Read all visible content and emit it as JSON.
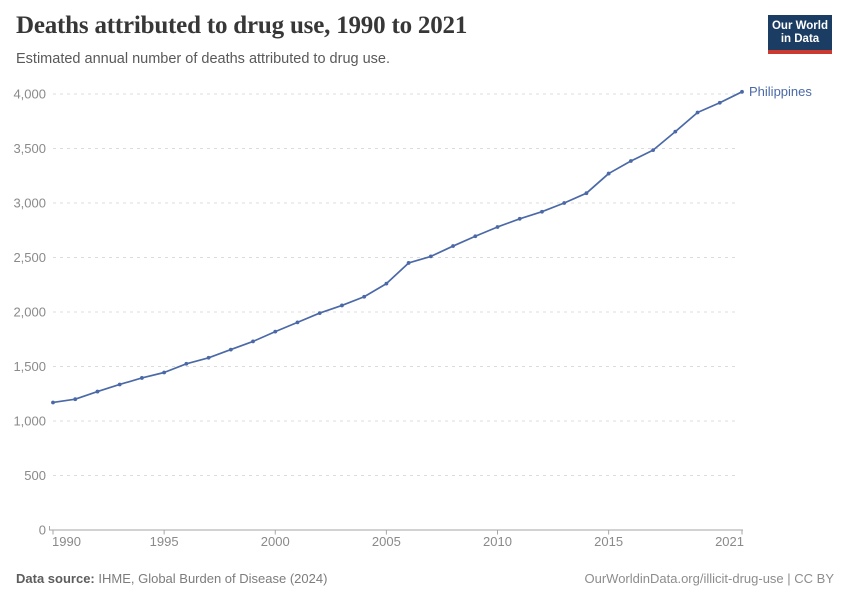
{
  "header": {
    "title": "Deaths attributed to drug use, 1990 to 2021",
    "subtitle": "Estimated annual number of deaths attributed to drug use.",
    "logo": {
      "line1": "Our World",
      "line2": "in Data"
    }
  },
  "chart_data": {
    "type": "line",
    "title": "Deaths attributed to drug use, 1990 to 2021",
    "xlabel": "",
    "ylabel": "",
    "xlim": [
      1990,
      2021
    ],
    "ylim": [
      0,
      4000
    ],
    "x_ticks": [
      1990,
      1995,
      2000,
      2005,
      2010,
      2015,
      2021
    ],
    "y_ticks": [
      0,
      500,
      1000,
      1500,
      2000,
      2500,
      3000,
      3500,
      4000
    ],
    "grid": "horizontal-dashed",
    "legend_position": "end-of-line-label",
    "series": [
      {
        "name": "Philippines",
        "x": [
          1990,
          1991,
          1992,
          1993,
          1994,
          1995,
          1996,
          1997,
          1998,
          1999,
          2000,
          2001,
          2002,
          2003,
          2004,
          2005,
          2006,
          2007,
          2008,
          2009,
          2010,
          2011,
          2012,
          2013,
          2014,
          2015,
          2016,
          2017,
          2018,
          2019,
          2020,
          2021
        ],
        "values": [
          1170,
          1200,
          1270,
          1335,
          1395,
          1445,
          1525,
          1580,
          1655,
          1730,
          1820,
          1905,
          1990,
          2060,
          2140,
          2260,
          2450,
          2510,
          2605,
          2695,
          2780,
          2855,
          2920,
          3000,
          3090,
          3270,
          3385,
          3485,
          3655,
          3830,
          3920,
          4020
        ]
      }
    ],
    "colors": {
      "line": "#4b69a7",
      "entity_label": "#4b69a7",
      "gridline": "#dcdcdc",
      "axis": "#a6a6a6",
      "tick_text": "#8a8a8a"
    }
  },
  "footer": {
    "source_label": "Data source:",
    "source_text": " IHME, Global Burden of Disease (2024)",
    "link_text": "OurWorldinData.org/illicit-drug-use | CC BY"
  }
}
